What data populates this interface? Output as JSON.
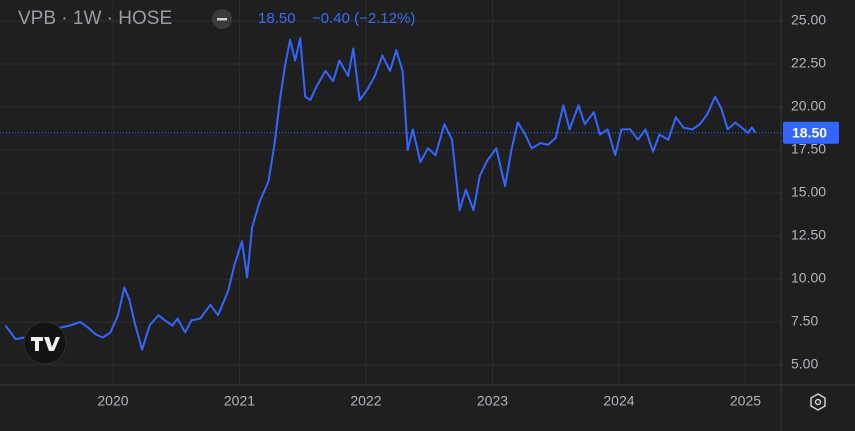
{
  "chart_data": {
    "type": "line",
    "title": "VPB · 1W · HOSE",
    "change": "−0.40 (−2.12%)",
    "last_price": {
      "value": 18.5,
      "label": "18.50"
    },
    "color": "#3366ff",
    "x": [
      2019.15,
      2019.23,
      2019.3,
      2019.42,
      2019.54,
      2019.66,
      2019.74,
      2019.8,
      2019.86,
      2019.92,
      2019.98,
      2020.04,
      2020.09,
      2020.13,
      2020.17,
      2020.23,
      2020.29,
      2020.36,
      2020.41,
      2020.47,
      2020.51,
      2020.57,
      2020.62,
      2020.69,
      2020.77,
      2020.83,
      2020.91,
      2020.96,
      2021.02,
      2021.06,
      2021.1,
      2021.16,
      2021.23,
      2021.28,
      2021.32,
      2021.36,
      2021.4,
      2021.44,
      2021.48,
      2021.52,
      2021.56,
      2021.61,
      2021.68,
      2021.74,
      2021.79,
      2021.86,
      2021.9,
      2021.95,
      2022.01,
      2022.07,
      2022.13,
      2022.19,
      2022.24,
      2022.29,
      2022.33,
      2022.37,
      2022.43,
      2022.49,
      2022.55,
      2022.62,
      2022.68,
      2022.74,
      2022.79,
      2022.85,
      2022.9,
      2022.96,
      2023.03,
      2023.1,
      2023.15,
      2023.2,
      2023.26,
      2023.31,
      2023.38,
      2023.44,
      2023.5,
      2023.56,
      2023.61,
      2023.68,
      2023.73,
      2023.8,
      2023.85,
      2023.91,
      2023.97,
      2024.02,
      2024.09,
      2024.15,
      2024.21,
      2024.27,
      2024.32,
      2024.39,
      2024.45,
      2024.51,
      2024.58,
      2024.64,
      2024.7,
      2024.76,
      2024.81,
      2024.86,
      2024.92,
      2024.97,
      2025.02,
      2025.05,
      2025.08
    ],
    "values": [
      7.3,
      6.5,
      6.6,
      6.8,
      7.1,
      7.3,
      7.5,
      7.2,
      6.8,
      6.6,
      6.9,
      7.9,
      9.5,
      8.8,
      7.5,
      5.9,
      7.3,
      7.9,
      7.6,
      7.3,
      7.7,
      6.9,
      7.6,
      7.7,
      8.5,
      7.9,
      9.3,
      10.8,
      12.2,
      10.1,
      13.0,
      14.5,
      15.7,
      18.0,
      20.4,
      22.4,
      23.9,
      22.7,
      24.0,
      20.6,
      20.4,
      21.2,
      22.1,
      21.5,
      22.7,
      21.8,
      23.4,
      20.4,
      21.0,
      21.8,
      23.0,
      22.1,
      23.3,
      22.1,
      17.5,
      18.7,
      16.8,
      17.6,
      17.2,
      19.0,
      18.1,
      14.0,
      15.2,
      14.0,
      16.0,
      16.9,
      17.6,
      15.4,
      17.5,
      19.1,
      18.4,
      17.6,
      17.9,
      17.8,
      18.2,
      20.1,
      18.7,
      20.1,
      19.0,
      19.7,
      18.4,
      18.7,
      17.2,
      18.7,
      18.7,
      18.1,
      18.7,
      17.4,
      18.4,
      18.1,
      19.4,
      18.8,
      18.7,
      19.0,
      19.6,
      20.6,
      19.9,
      18.7,
      19.1,
      18.8,
      18.5,
      18.8,
      18.5
    ],
    "xlim": [
      2019.107,
      2025.281
    ],
    "xticks": [
      2020,
      2021,
      2022,
      2023,
      2024,
      2025
    ],
    "ylim": [
      3.84,
      26.22
    ],
    "yticks": [
      {
        "value": 5,
        "label": "5.00"
      },
      {
        "value": 7.5,
        "label": "7.50"
      },
      {
        "value": 10,
        "label": "10.00"
      },
      {
        "value": 12.5,
        "label": "12.50"
      },
      {
        "value": 15,
        "label": "15.00"
      },
      {
        "value": 17.5,
        "label": "17.50"
      },
      {
        "value": 20,
        "label": "20.00"
      },
      {
        "value": 22.5,
        "label": "22.50"
      },
      {
        "value": 25,
        "label": "25.00"
      }
    ],
    "grid": true
  }
}
